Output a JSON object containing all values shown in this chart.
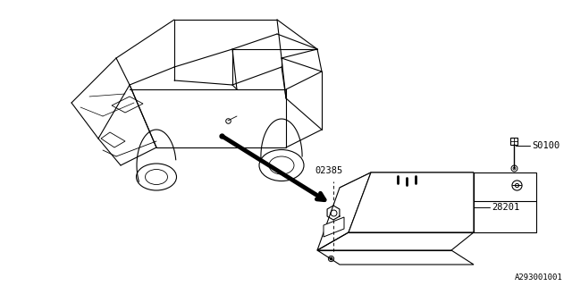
{
  "bg_color": "#ffffff",
  "line_color": "#000000",
  "text_color": "#000000",
  "diagram_ref": "A293001001",
  "label_S0100": "S0100",
  "label_28201": "28201",
  "label_02385": "02385"
}
